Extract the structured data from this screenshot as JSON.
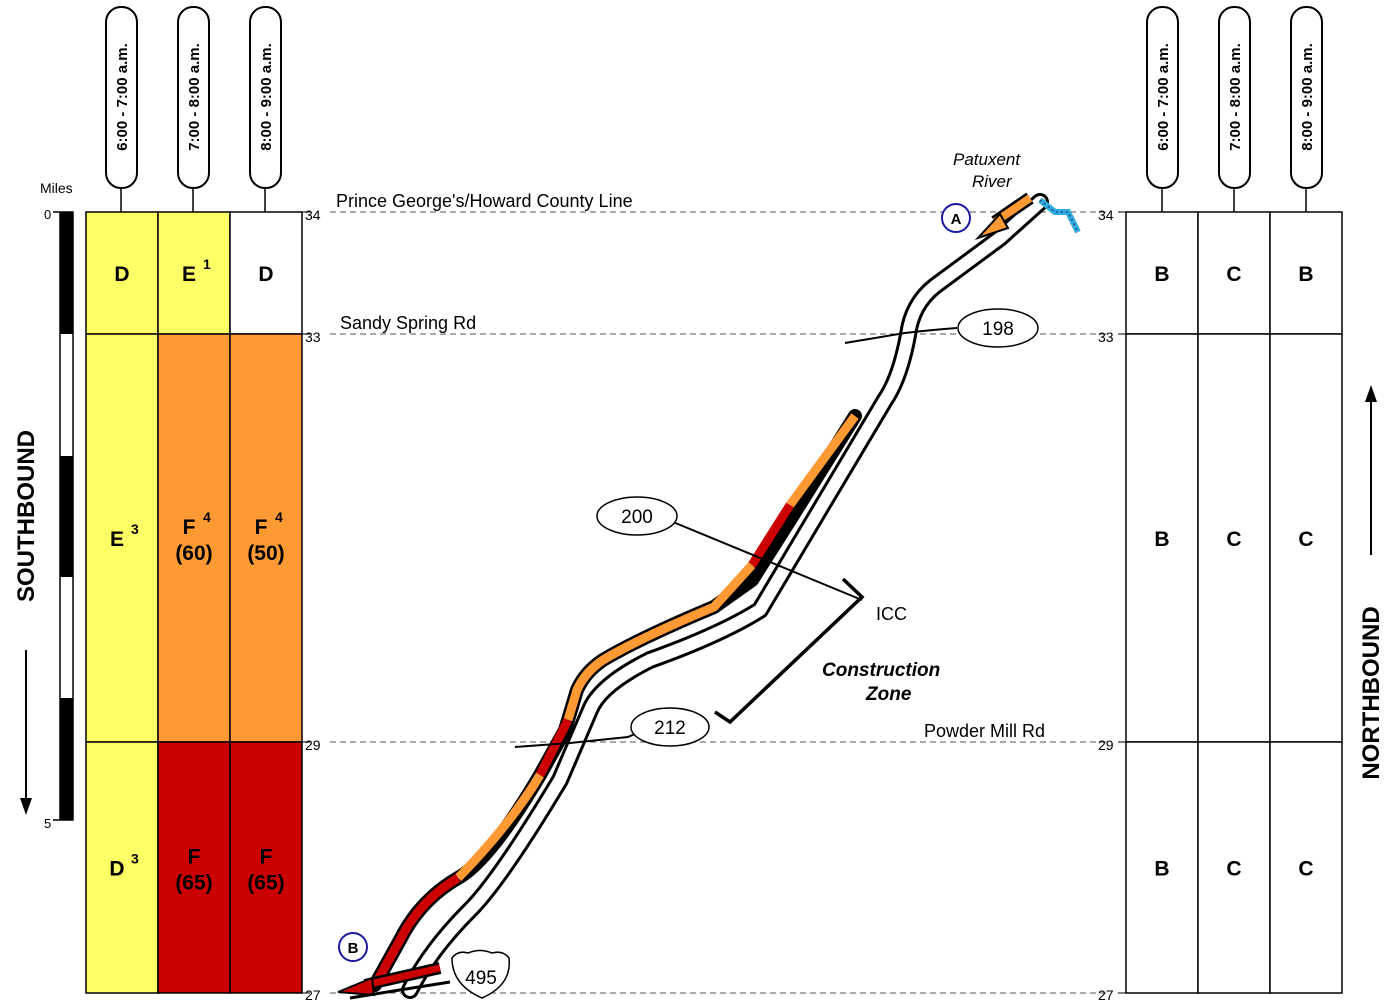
{
  "time_periods": [
    "6:00 - 7:00 a.m.",
    "7:00 - 8:00 a.m.",
    "8:00 - 9:00 a.m."
  ],
  "scale": {
    "title": "Miles",
    "start": "0",
    "end": "5"
  },
  "directions": {
    "southbound": "SOUTHBOUND",
    "northbound": "NORTHBOUND"
  },
  "mileposts": {
    "m34": "34",
    "m33": "33",
    "m29": "29",
    "m27": "27"
  },
  "landmarks": {
    "county_line": "Prince George's/Howard County Line",
    "sandy_spring": "Sandy Spring Rd",
    "powder_mill": "Powder Mill Rd",
    "icc": "ICC",
    "construction_1": "Construction",
    "construction_2": "Zone",
    "river_1": "Patuxent",
    "river_2": "River"
  },
  "exits": {
    "e198": "198",
    "e200": "200",
    "e212": "212",
    "e495": "495"
  },
  "points": {
    "a": "A",
    "b": "B"
  },
  "colors": {
    "D": "#ffff66",
    "E": "#ffff66",
    "F_orange": "#ff9933",
    "F_red": "#cc0000",
    "white": "#ffffff",
    "river": "#33aadd",
    "point_ring": "#1a1aa0"
  },
  "southbound": {
    "segments": [
      {
        "cells": [
          {
            "grade": "D",
            "sup": "",
            "speed": "",
            "color": "#ffff66"
          },
          {
            "grade": "E",
            "sup": "1",
            "speed": "",
            "color": "#ffff66"
          },
          {
            "grade": "D",
            "sup": "",
            "speed": "",
            "color": "#ffffff"
          }
        ]
      },
      {
        "cells": [
          {
            "grade": "E",
            "sup": "3",
            "speed": "",
            "color": "#ffff66"
          },
          {
            "grade": "F",
            "sup": "4",
            "speed": "(60)",
            "color": "#ff9933"
          },
          {
            "grade": "F",
            "sup": "4",
            "speed": "(50)",
            "color": "#ff9933"
          }
        ]
      },
      {
        "cells": [
          {
            "grade": "D",
            "sup": "3",
            "speed": "",
            "color": "#ffff66"
          },
          {
            "grade": "F",
            "sup": "",
            "speed": "(65)",
            "color": "#cc0000"
          },
          {
            "grade": "F",
            "sup": "",
            "speed": "(65)",
            "color": "#cc0000"
          }
        ]
      }
    ]
  },
  "northbound": {
    "segments": [
      {
        "cells": [
          {
            "grade": "B"
          },
          {
            "grade": "C"
          },
          {
            "grade": "B"
          }
        ]
      },
      {
        "cells": [
          {
            "grade": "B"
          },
          {
            "grade": "C"
          },
          {
            "grade": "C"
          }
        ]
      },
      {
        "cells": [
          {
            "grade": "B"
          },
          {
            "grade": "C"
          },
          {
            "grade": "C"
          }
        ]
      }
    ]
  }
}
